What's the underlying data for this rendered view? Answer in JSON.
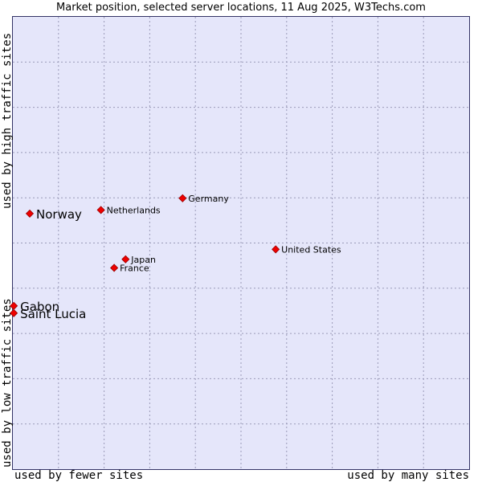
{
  "chart_data": {
    "type": "scatter",
    "title": "Market position, selected server locations, 11 Aug 2025, W3Techs.com",
    "xlabel_low": "used by fewer sites",
    "xlabel_high": "used by many sites",
    "ylabel_low": "used by low traffic sites",
    "ylabel_high": "used by high traffic sites",
    "grid": true,
    "xlim": [
      0,
      100
    ],
    "ylim": [
      0,
      100
    ],
    "points": [
      {
        "name": "Norway",
        "x": 3.7,
        "y": 56.5,
        "highlight": true
      },
      {
        "name": "Netherlands",
        "x": 19.3,
        "y": 57.3,
        "highlight": false
      },
      {
        "name": "Germany",
        "x": 37.2,
        "y": 59.9,
        "highlight": false
      },
      {
        "name": "United States",
        "x": 57.6,
        "y": 48.6,
        "highlight": false
      },
      {
        "name": "Japan",
        "x": 24.7,
        "y": 46.4,
        "highlight": false
      },
      {
        "name": "France",
        "x": 22.2,
        "y": 44.5,
        "highlight": false
      },
      {
        "name": "Gabon",
        "x": 0.2,
        "y": 36.1,
        "highlight": true
      },
      {
        "name": "Saint Lucia",
        "x": 0.2,
        "y": 34.5,
        "highlight": true
      }
    ],
    "marker_color": "#ee0000"
  }
}
